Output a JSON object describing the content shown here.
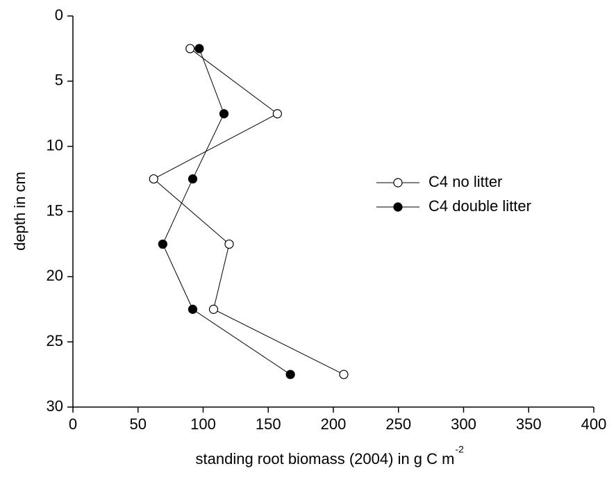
{
  "chart_data": {
    "type": "line",
    "xlabel": "standing root biomass (2004) in g C m",
    "xlabel_superscript": "-2",
    "ylabel": "depth in cm",
    "y": [
      2.5,
      7.5,
      12.5,
      17.5,
      22.5,
      27.5
    ],
    "series": [
      {
        "name": "C4 no litter",
        "color": "#000000",
        "marker_fill": "#ffffff",
        "values": [
          90,
          157,
          62,
          120,
          108,
          208
        ]
      },
      {
        "name": "C4 double litter",
        "color": "#000000",
        "marker_fill": "#000000",
        "values": [
          97,
          116,
          92,
          69,
          92,
          167
        ]
      }
    ],
    "xlim": [
      0,
      400
    ],
    "xticks": [
      0,
      50,
      100,
      150,
      200,
      250,
      300,
      350,
      400
    ],
    "ylim": [
      0,
      30
    ],
    "yticks": [
      0,
      5,
      10,
      15,
      20,
      25,
      30
    ],
    "y_inverted": true,
    "grid": false,
    "legend": "center right"
  }
}
